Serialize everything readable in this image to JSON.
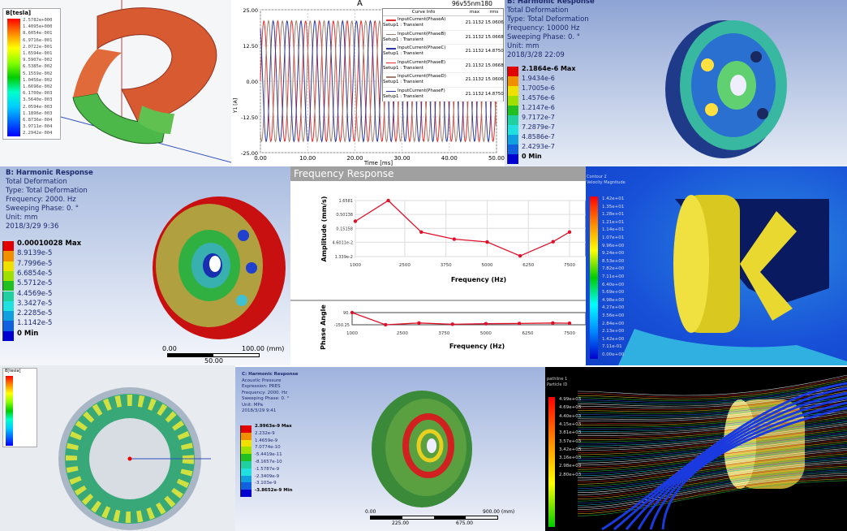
{
  "panels": {
    "magnetic": {
      "legend_title": "B[tesla]",
      "legend_values": [
        "2.5782e+000",
        "1.4095e+000",
        "8.6054e-001",
        "6.9716e-001",
        "2.0722e-001",
        "1.6594e-001",
        "9.5907e-002",
        "6.5385e-002",
        "5.1559e-002",
        "1.0456e-002",
        "1.6696e-002",
        "6.1700e-003",
        "3.5640e-003",
        "2.0594e-003",
        "1.1896e-003",
        "6.8736e-004",
        "3.9711e-004",
        "2.2942e-004"
      ]
    },
    "current_plot": {
      "title": "A",
      "tag": "96v55nm180",
      "legend_headers": [
        "Curve Info",
        "max",
        "rms"
      ],
      "curves": [
        {
          "name": "InputCurrent(PhaseA)",
          "setup": "Setup1 : Transient",
          "max": "21.1132",
          "rms": "15.0606",
          "color": "#e03030"
        },
        {
          "name": "InputCurrent(PhaseB)",
          "setup": "Setup1 : Transient",
          "max": "21.1132",
          "rms": "15.0668",
          "color": "#a08070"
        },
        {
          "name": "InputCurrent(PhaseC)",
          "setup": "Setup1 : Transient",
          "max": "21.1132",
          "rms": "14.8750",
          "color": "#2a3aa0"
        },
        {
          "name": "InputCurrent(PhaseE)",
          "setup": "Setup1 : Transient",
          "max": "21.1132",
          "rms": "15.0668",
          "color": "#e03030"
        },
        {
          "name": "InputCurrent(PhaseD)",
          "setup": "Setup1 : Transient",
          "max": "21.1132",
          "rms": "15.0606",
          "color": "#a08070"
        },
        {
          "name": "InputCurrent(PhaseF)",
          "setup": "Setup1 : Transient",
          "max": "21.1132",
          "rms": "14.8750",
          "color": "#2a3aa0"
        }
      ]
    },
    "harmonic_top": {
      "title": "B: Harmonic Response",
      "lines": [
        "Total Deformation",
        "Type: Total Deformation",
        "Frequency: 10000 Hz",
        "Sweeping Phase: 0. °",
        "Unit: mm",
        "2018/3/28 22:09"
      ],
      "legend_values": [
        "2.1864e-6 Max",
        "1.9434e-6",
        "1.7005e-6",
        "1.4576e-6",
        "1.2147e-6",
        "9.7172e-7",
        "7.2879e-7",
        "4.8586e-7",
        "2.4293e-7",
        "0 Min"
      ]
    },
    "harmonic_mid": {
      "title": "B: Harmonic Response",
      "lines": [
        "Total Deformation",
        "Type: Total Deformation",
        "Frequency: 2000. Hz",
        "Sweeping Phase: 0. °",
        "Unit: mm",
        "2018/3/29 9:36"
      ],
      "legend_values": [
        "0.00010028 Max",
        "8.9139e-5",
        "7.7996e-5",
        "6.6854e-5",
        "5.5712e-5",
        "4.4569e-5",
        "3.3427e-5",
        "2.2285e-5",
        "1.1142e-5",
        "0 Min"
      ],
      "scale": {
        "start": "0.00",
        "end": "100.00 (mm)",
        "mid": "50.00"
      }
    },
    "frequency_response": {
      "header": "Frequency Response"
    },
    "cfd": {
      "legend_title": [
        "Contour 2",
        "Velocity Magnitude"
      ],
      "legend_values": [
        "1.42e+01",
        "1.35e+01",
        "1.28e+01",
        "1.21e+01",
        "1.14e+01",
        "1.07e+01",
        "9.96e+00",
        "9.24e+00",
        "8.53e+00",
        "7.82e+00",
        "7.11e+00",
        "6.40e+00",
        "5.69e+00",
        "4.98e+00",
        "4.27e+00",
        "3.56e+00",
        "2.84e+00",
        "2.13e+00",
        "1.42e+00",
        "7.11e-01",
        "0.00e+00"
      ]
    },
    "ring": {
      "legend_title": "B[tesla]"
    },
    "acoustic": {
      "title": "C: Harmonic Response",
      "lines": [
        "Acoustic Pressure",
        "Expression: PRES",
        "Frequency: 2000. Hz",
        "Sweeping Phase: 0. °",
        "Unit: MPa",
        "2018/3/29 9:41"
      ],
      "legend_values": [
        "2.9963e-9 Max",
        "2.232e-9",
        "1.4659e-9",
        "7.0774e-10",
        "-5.4419e-11",
        "-8.1657e-10",
        "-1.5787e-9",
        "-2.3409e-9",
        "-3.103e-9",
        "-3.8652e-9 Min"
      ],
      "scale": {
        "start": "0.00",
        "end": "900.00 (mm)",
        "q1": "225.00",
        "q3": "675.00"
      }
    },
    "streamlines": {
      "legend_title": [
        "pathline 1",
        "Particle ID"
      ],
      "legend_values": [
        "4.99e+03",
        "4.69e+03",
        "4.40e+03",
        "4.15e+03",
        "3.81e+03",
        "3.57e+03",
        "3.42e+03",
        "3.16e+03",
        "2.98e+03",
        "2.80e+03"
      ]
    }
  },
  "chart_data": [
    {
      "type": "line",
      "title": "A",
      "xlabel": "Time [ms]",
      "ylabel": "Y1 [A]",
      "xlim": [
        0,
        50
      ],
      "ylim": [
        -25,
        25
      ],
      "xticks": [
        "0.00",
        "10.00",
        "20.00",
        "30.00",
        "40.00",
        "50.00"
      ],
      "yticks": [
        "25.00",
        "12.50",
        "0.00",
        "-12.50",
        "-25.00"
      ],
      "series": [
        {
          "name": "InputCurrent(PhaseA)",
          "amplitude": 21.1132,
          "frequency_hz": 340,
          "phase_deg": 0,
          "color": "#e03030"
        },
        {
          "name": "InputCurrent(PhaseB)",
          "amplitude": 21.1132,
          "frequency_hz": 340,
          "phase_deg": -120,
          "color": "#a08070"
        },
        {
          "name": "InputCurrent(PhaseC)",
          "amplitude": 21.1132,
          "frequency_hz": 340,
          "phase_deg": -240,
          "color": "#2a3aa0"
        }
      ],
      "grid": true,
      "legend": "top-right"
    },
    {
      "type": "line",
      "xlabel": "Frequency (Hz)",
      "ylabel": "Amplitude (mm/s)",
      "yscale": "log",
      "xlim": [
        1000,
        7500
      ],
      "ylim": [
        0.01339,
        1.6581
      ],
      "xticks": [
        "1000",
        "2500",
        "3750",
        "5000",
        "6250",
        "7500"
      ],
      "yticks": [
        "1.6581",
        "0.50138",
        "0.15158",
        "4.6011e-2",
        "1.339e-2"
      ],
      "x": [
        1000,
        2000,
        3000,
        4000,
        5000,
        6000,
        7000,
        7500
      ],
      "y": [
        0.28,
        1.6581,
        0.11,
        0.06,
        0.047,
        0.0142,
        0.048,
        0.11
      ],
      "grid": true,
      "color": "#e0102a"
    },
    {
      "type": "line",
      "xlabel": "Frequency (Hz)",
      "ylabel": "Phase Angle",
      "xlim": [
        1000,
        7500
      ],
      "ylim": [
        -150.25,
        90
      ],
      "xticks": [
        "1000",
        "2500",
        "3750",
        "5000",
        "6250",
        "7500"
      ],
      "yticks": [
        "90.",
        "-150.25"
      ],
      "x": [
        1000,
        2000,
        3000,
        4000,
        5000,
        6000,
        7000,
        7500
      ],
      "y": [
        90,
        -150,
        -115,
        -140,
        -130,
        -125,
        -115,
        -120
      ],
      "color": "#e0102a"
    }
  ]
}
